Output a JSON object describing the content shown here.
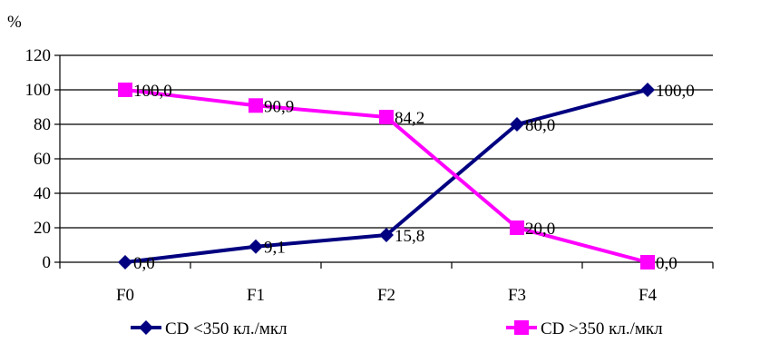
{
  "chart_data": {
    "type": "line",
    "ylabel": "%",
    "categories": [
      "F0",
      "F1",
      "F2",
      "F3",
      "F4"
    ],
    "ylim": [
      0,
      120
    ],
    "yticks": [
      0,
      20,
      40,
      60,
      80,
      100,
      120
    ],
    "grid": true,
    "legend_position": "bottom",
    "series": [
      {
        "name": "CD <350 кл./мкл",
        "color": "#000080",
        "marker": "diamond",
        "values": [
          0.0,
          9.1,
          15.8,
          80.0,
          100.0
        ],
        "labels": [
          "0,0",
          "9,1",
          "15,8",
          "80,0",
          "100,0"
        ]
      },
      {
        "name": "CD >350 кл./мкл",
        "color": "#FF00FF",
        "marker": "square",
        "values": [
          100.0,
          90.9,
          84.2,
          20.0,
          0.0
        ],
        "labels": [
          "100,0",
          "90,9",
          "84,2",
          "20,0",
          "0,0"
        ]
      }
    ]
  }
}
